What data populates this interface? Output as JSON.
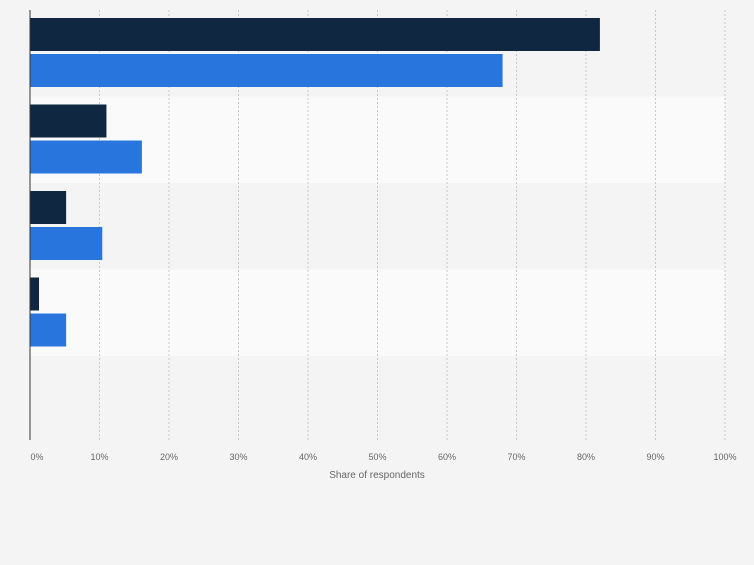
{
  "chart_data": {
    "type": "bar",
    "orientation": "horizontal",
    "categories": [
      "",
      "",
      "",
      "",
      ""
    ],
    "series": [
      {
        "values": [
          82,
          11,
          5.2,
          1.3,
          0
        ],
        "color": "#0f2741"
      },
      {
        "values": [
          68,
          16.1,
          10.4,
          5.2,
          0
        ],
        "color": "#2876dd"
      }
    ],
    "xlabel": "Share of respondents",
    "x_ticks": [
      "0%",
      "10%",
      "20%",
      "30%",
      "40%",
      "50%",
      "60%",
      "70%",
      "80%",
      "90%",
      "100%"
    ],
    "xlim": [
      0,
      100
    ],
    "grid": true,
    "legend": "none",
    "band_colors": [
      "#f4f4f4",
      "#fafafa"
    ]
  }
}
